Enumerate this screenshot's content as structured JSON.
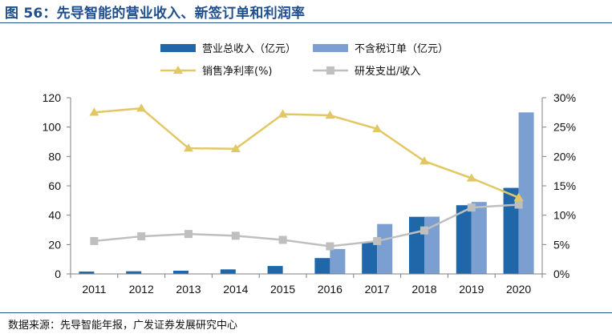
{
  "figure": {
    "title": "图 56：先导智能的营业收入、新签订单和利润率",
    "source": "数据来源：先导智能年报，广发证券发展研究中心"
  },
  "colors": {
    "revenue": "#1f67a8",
    "orders": "#7a9fd0",
    "net_margin": "#e1c865",
    "rd_ratio": "#bfbfbf",
    "title": "#1f4e8c",
    "axis": "#7f7f7f"
  },
  "chart_data": {
    "type": "bar",
    "title": "",
    "xlabel": "",
    "ylabel": "",
    "categories": [
      "2011",
      "2012",
      "2013",
      "2014",
      "2015",
      "2016",
      "2017",
      "2018",
      "2019",
      "2020"
    ],
    "ylim": [
      0,
      120
    ],
    "yticks": [
      0,
      20,
      40,
      60,
      80,
      100,
      120
    ],
    "y2lim": [
      0,
      30
    ],
    "y2ticks": [
      "0%",
      "5%",
      "10%",
      "15%",
      "20%",
      "25%",
      "30%"
    ],
    "legend_placement": "top",
    "grid": false,
    "series": [
      {
        "name": "营业总收入（亿元）",
        "type": "bar",
        "axis": "left",
        "values": [
          1.6,
          1.8,
          2.2,
          3.1,
          5.4,
          10.8,
          21.8,
          38.9,
          46.8,
          58.6
        ]
      },
      {
        "name": "不含税订单（亿元）",
        "type": "bar",
        "axis": "left",
        "values": [
          0,
          0,
          0,
          0,
          0,
          17.0,
          34.0,
          39.0,
          49.0,
          110.0
        ]
      },
      {
        "name": "销售净利率(%)",
        "type": "line",
        "axis": "right",
        "marker": "triangle",
        "values": [
          27.5,
          28.2,
          21.4,
          21.3,
          27.2,
          27.0,
          24.7,
          19.2,
          16.3,
          13.0
        ]
      },
      {
        "name": "研发支出/收入",
        "type": "line",
        "axis": "right",
        "marker": "square",
        "values": [
          5.6,
          6.4,
          6.8,
          6.5,
          5.8,
          4.7,
          5.6,
          7.4,
          11.3,
          11.8
        ]
      }
    ]
  }
}
